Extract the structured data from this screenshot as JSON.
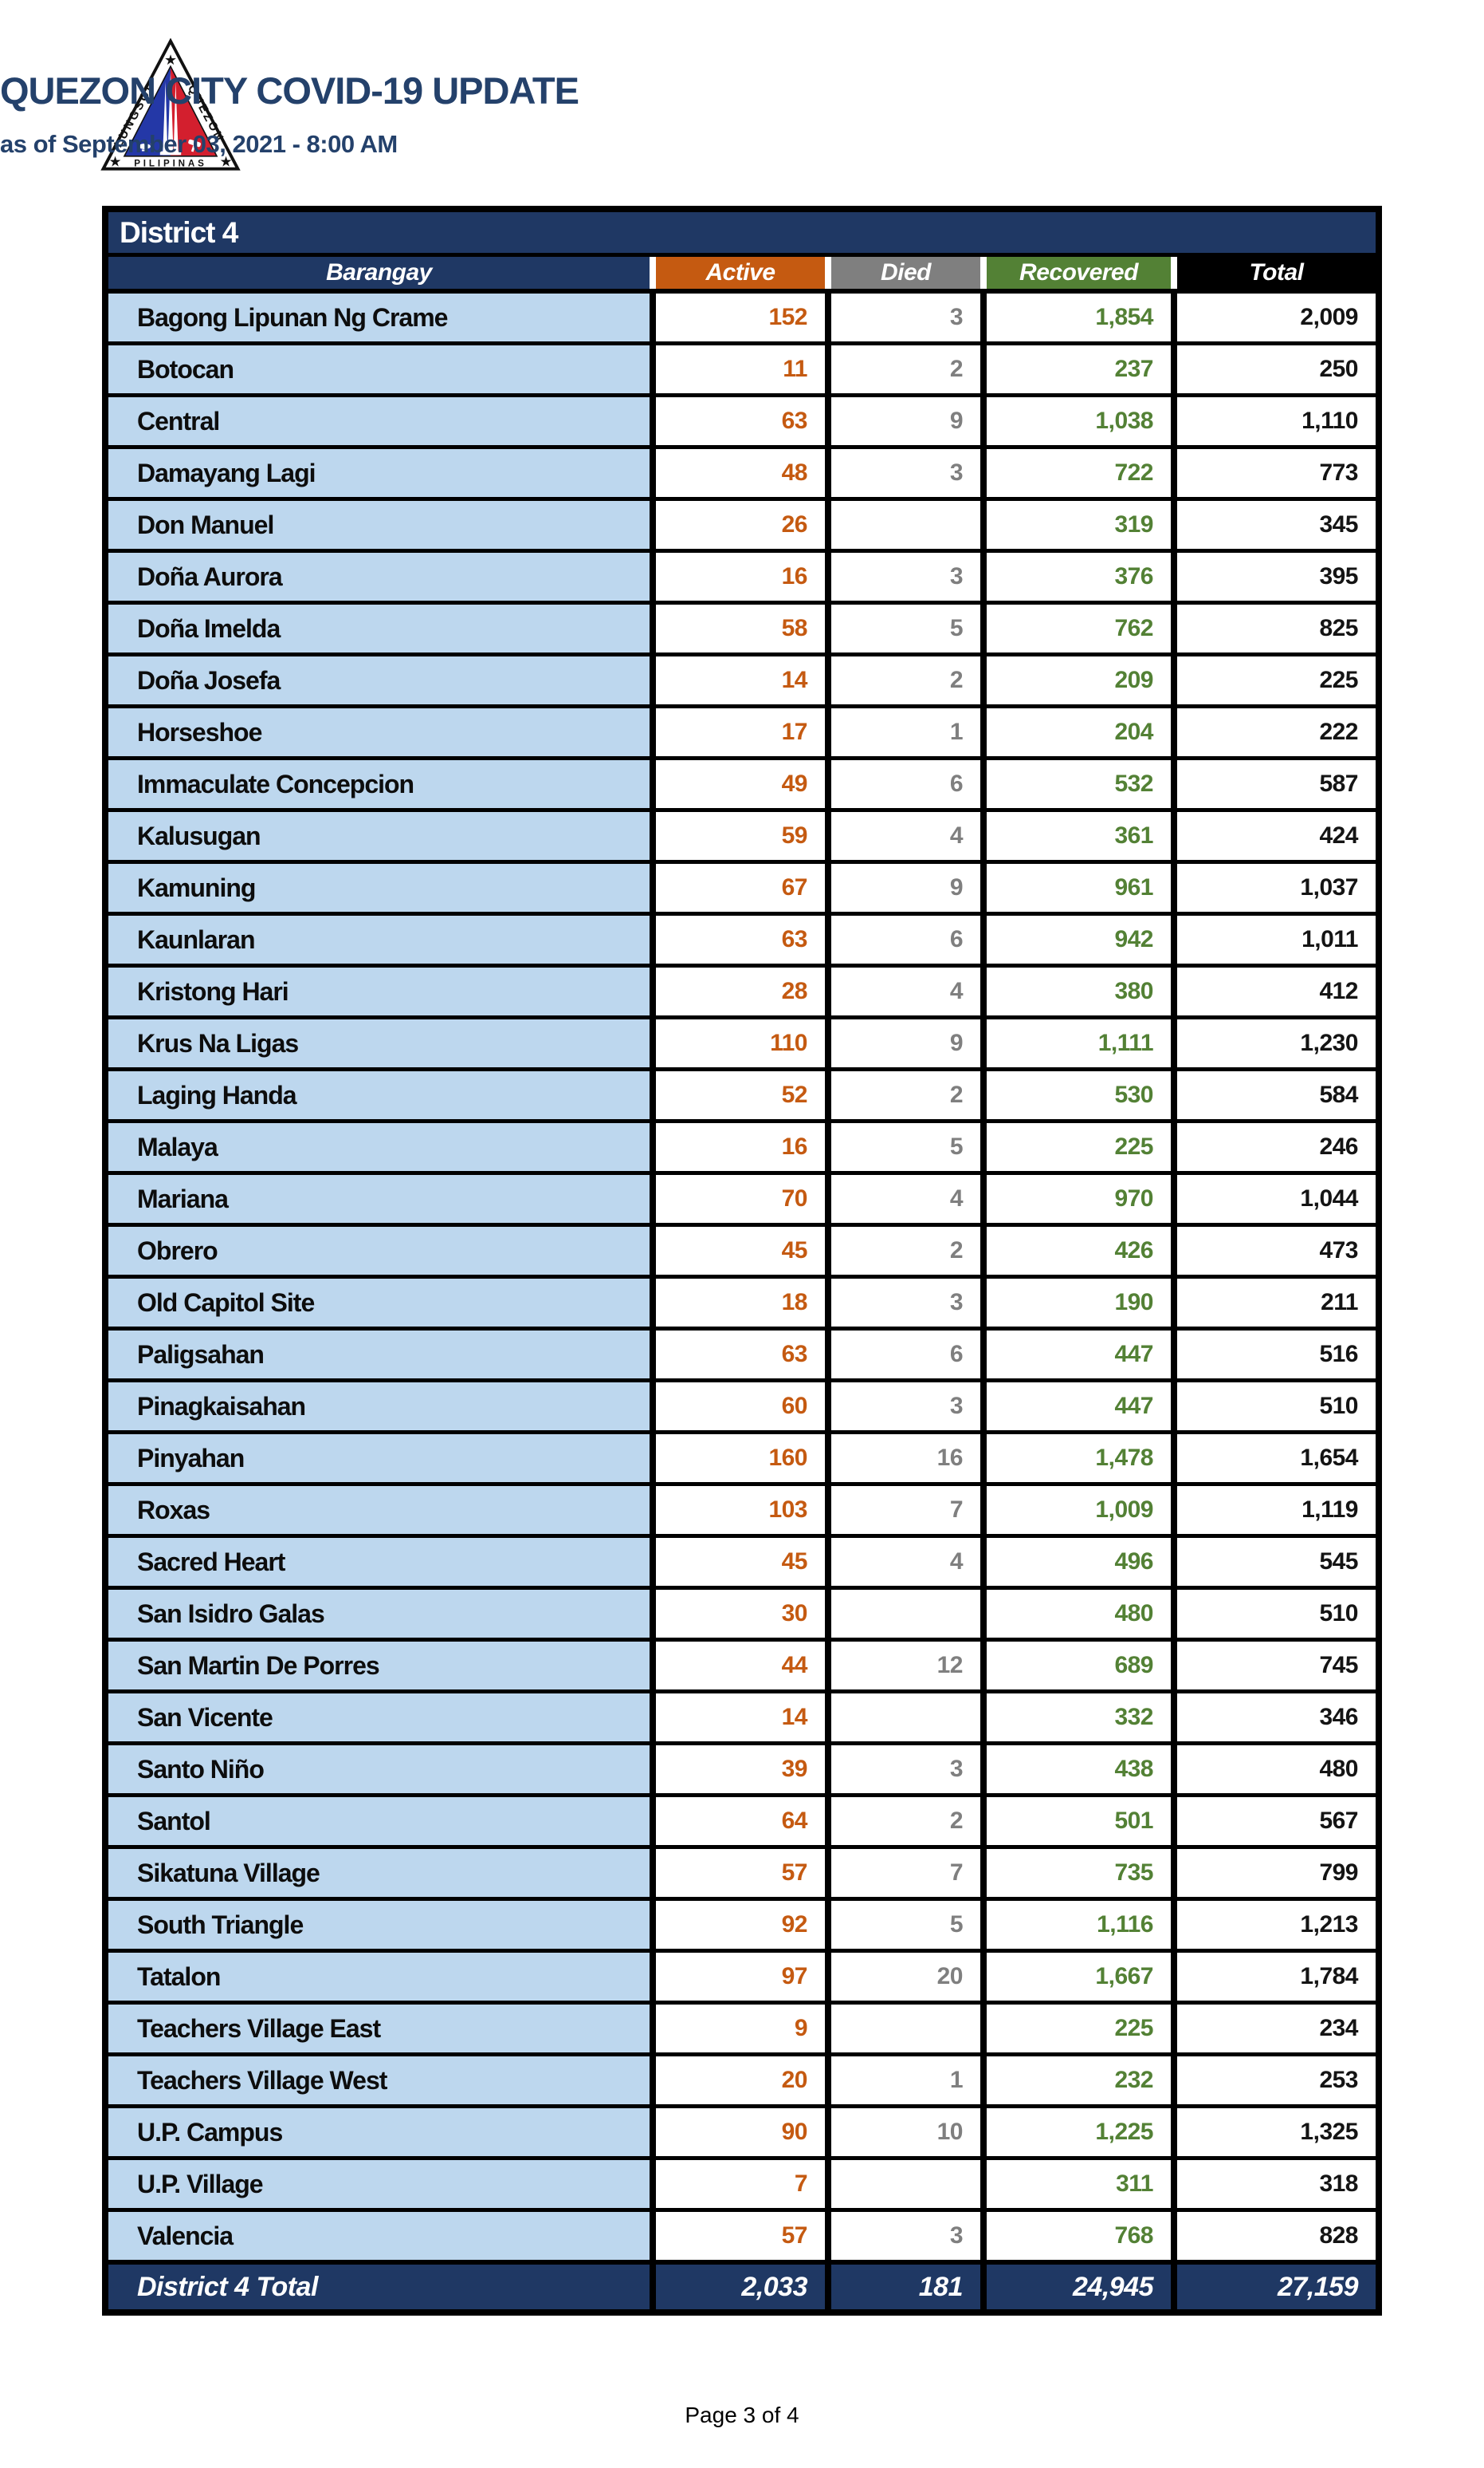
{
  "header": {
    "title": "QUEZON CITY COVID-19 UPDATE",
    "subtitle": "as of September 03, 2021 - 8:00 AM",
    "logo": {
      "text_left": "LUNGSOD",
      "text_right": "QUEZON",
      "text_bottom": "PILIPINAS"
    }
  },
  "table": {
    "district_label": "District 4",
    "columns": [
      "Barangay",
      "Active",
      "Died",
      "Recovered",
      "Total"
    ],
    "rows": [
      {
        "barangay": "Bagong Lipunan Ng Crame",
        "active": "152",
        "died": "3",
        "recovered": "1,854",
        "total": "2,009"
      },
      {
        "barangay": "Botocan",
        "active": "11",
        "died": "2",
        "recovered": "237",
        "total": "250"
      },
      {
        "barangay": "Central",
        "active": "63",
        "died": "9",
        "recovered": "1,038",
        "total": "1,110"
      },
      {
        "barangay": "Damayang Lagi",
        "active": "48",
        "died": "3",
        "recovered": "722",
        "total": "773"
      },
      {
        "barangay": "Don Manuel",
        "active": "26",
        "died": "",
        "recovered": "319",
        "total": "345"
      },
      {
        "barangay": "Doña Aurora",
        "active": "16",
        "died": "3",
        "recovered": "376",
        "total": "395"
      },
      {
        "barangay": "Doña Imelda",
        "active": "58",
        "died": "5",
        "recovered": "762",
        "total": "825"
      },
      {
        "barangay": "Doña Josefa",
        "active": "14",
        "died": "2",
        "recovered": "209",
        "total": "225"
      },
      {
        "barangay": "Horseshoe",
        "active": "17",
        "died": "1",
        "recovered": "204",
        "total": "222"
      },
      {
        "barangay": "Immaculate Concepcion",
        "active": "49",
        "died": "6",
        "recovered": "532",
        "total": "587"
      },
      {
        "barangay": "Kalusugan",
        "active": "59",
        "died": "4",
        "recovered": "361",
        "total": "424"
      },
      {
        "barangay": "Kamuning",
        "active": "67",
        "died": "9",
        "recovered": "961",
        "total": "1,037"
      },
      {
        "barangay": "Kaunlaran",
        "active": "63",
        "died": "6",
        "recovered": "942",
        "total": "1,011"
      },
      {
        "barangay": "Kristong Hari",
        "active": "28",
        "died": "4",
        "recovered": "380",
        "total": "412"
      },
      {
        "barangay": "Krus Na Ligas",
        "active": "110",
        "died": "9",
        "recovered": "1,111",
        "total": "1,230"
      },
      {
        "barangay": "Laging Handa",
        "active": "52",
        "died": "2",
        "recovered": "530",
        "total": "584"
      },
      {
        "barangay": "Malaya",
        "active": "16",
        "died": "5",
        "recovered": "225",
        "total": "246"
      },
      {
        "barangay": "Mariana",
        "active": "70",
        "died": "4",
        "recovered": "970",
        "total": "1,044"
      },
      {
        "barangay": "Obrero",
        "active": "45",
        "died": "2",
        "recovered": "426",
        "total": "473"
      },
      {
        "barangay": "Old Capitol Site",
        "active": "18",
        "died": "3",
        "recovered": "190",
        "total": "211"
      },
      {
        "barangay": "Paligsahan",
        "active": "63",
        "died": "6",
        "recovered": "447",
        "total": "516"
      },
      {
        "barangay": "Pinagkaisahan",
        "active": "60",
        "died": "3",
        "recovered": "447",
        "total": "510"
      },
      {
        "barangay": "Pinyahan",
        "active": "160",
        "died": "16",
        "recovered": "1,478",
        "total": "1,654"
      },
      {
        "barangay": "Roxas",
        "active": "103",
        "died": "7",
        "recovered": "1,009",
        "total": "1,119"
      },
      {
        "barangay": "Sacred Heart",
        "active": "45",
        "died": "4",
        "recovered": "496",
        "total": "545"
      },
      {
        "barangay": "San Isidro Galas",
        "active": "30",
        "died": "",
        "recovered": "480",
        "total": "510"
      },
      {
        "barangay": "San Martin De Porres",
        "active": "44",
        "died": "12",
        "recovered": "689",
        "total": "745"
      },
      {
        "barangay": "San Vicente",
        "active": "14",
        "died": "",
        "recovered": "332",
        "total": "346"
      },
      {
        "barangay": "Santo Niño",
        "active": "39",
        "died": "3",
        "recovered": "438",
        "total": "480"
      },
      {
        "barangay": "Santol",
        "active": "64",
        "died": "2",
        "recovered": "501",
        "total": "567"
      },
      {
        "barangay": "Sikatuna Village",
        "active": "57",
        "died": "7",
        "recovered": "735",
        "total": "799"
      },
      {
        "barangay": "South Triangle",
        "active": "92",
        "died": "5",
        "recovered": "1,116",
        "total": "1,213"
      },
      {
        "barangay": "Tatalon",
        "active": "97",
        "died": "20",
        "recovered": "1,667",
        "total": "1,784"
      },
      {
        "barangay": "Teachers Village East",
        "active": "9",
        "died": "",
        "recovered": "225",
        "total": "234"
      },
      {
        "barangay": "Teachers Village West",
        "active": "20",
        "died": "1",
        "recovered": "232",
        "total": "253"
      },
      {
        "barangay": "U.P. Campus",
        "active": "90",
        "died": "10",
        "recovered": "1,225",
        "total": "1,325"
      },
      {
        "barangay": "U.P. Village",
        "active": "7",
        "died": "",
        "recovered": "311",
        "total": "318"
      },
      {
        "barangay": "Valencia",
        "active": "57",
        "died": "3",
        "recovered": "768",
        "total": "828"
      }
    ],
    "total_row": {
      "label": "District 4 Total",
      "active": "2,033",
      "died": "181",
      "recovered": "24,945",
      "total": "27,159"
    }
  },
  "footer": {
    "page_label": "Page 3 of 4"
  },
  "colors": {
    "navy": "#1F3864",
    "title_navy": "#24416B",
    "light_blue": "#BDD7EE",
    "orange": "#C55A11",
    "gray": "#7F7F7F",
    "green": "#538135",
    "logo_blue": "#2438A7",
    "logo_red": "#D31F2E",
    "logo_yellow": "#F2C31B"
  }
}
